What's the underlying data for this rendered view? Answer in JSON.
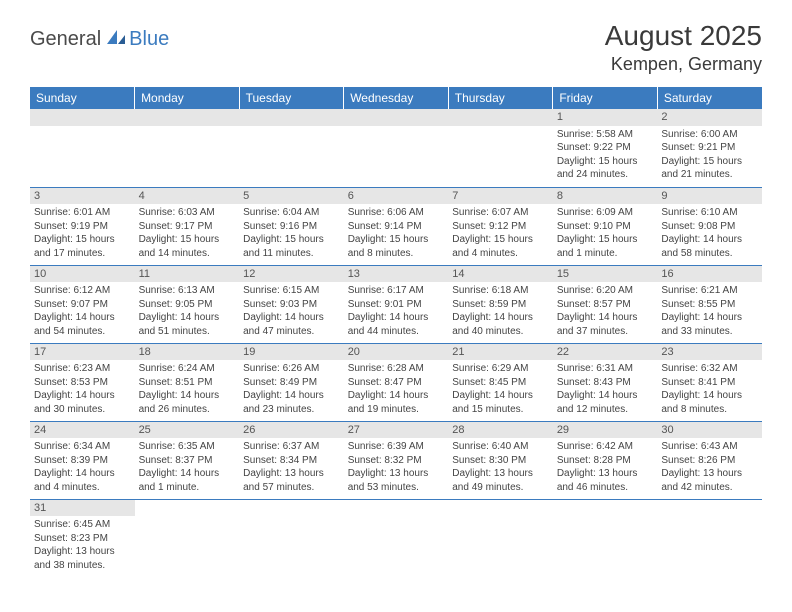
{
  "logo": {
    "part1": "General",
    "part2": "Blue"
  },
  "title": "August 2025",
  "location": "Kempen, Germany",
  "colors": {
    "header_bg": "#3b7bbf",
    "header_text": "#ffffff",
    "daynum_bg": "#e6e6e6",
    "row_border": "#3b7bbf",
    "text": "#444444"
  },
  "weekdays": [
    "Sunday",
    "Monday",
    "Tuesday",
    "Wednesday",
    "Thursday",
    "Friday",
    "Saturday"
  ],
  "weeks": [
    [
      null,
      null,
      null,
      null,
      null,
      {
        "n": "1",
        "sr": "Sunrise: 5:58 AM",
        "ss": "Sunset: 9:22 PM",
        "d1": "Daylight: 15 hours",
        "d2": "and 24 minutes."
      },
      {
        "n": "2",
        "sr": "Sunrise: 6:00 AM",
        "ss": "Sunset: 9:21 PM",
        "d1": "Daylight: 15 hours",
        "d2": "and 21 minutes."
      }
    ],
    [
      {
        "n": "3",
        "sr": "Sunrise: 6:01 AM",
        "ss": "Sunset: 9:19 PM",
        "d1": "Daylight: 15 hours",
        "d2": "and 17 minutes."
      },
      {
        "n": "4",
        "sr": "Sunrise: 6:03 AM",
        "ss": "Sunset: 9:17 PM",
        "d1": "Daylight: 15 hours",
        "d2": "and 14 minutes."
      },
      {
        "n": "5",
        "sr": "Sunrise: 6:04 AM",
        "ss": "Sunset: 9:16 PM",
        "d1": "Daylight: 15 hours",
        "d2": "and 11 minutes."
      },
      {
        "n": "6",
        "sr": "Sunrise: 6:06 AM",
        "ss": "Sunset: 9:14 PM",
        "d1": "Daylight: 15 hours",
        "d2": "and 8 minutes."
      },
      {
        "n": "7",
        "sr": "Sunrise: 6:07 AM",
        "ss": "Sunset: 9:12 PM",
        "d1": "Daylight: 15 hours",
        "d2": "and 4 minutes."
      },
      {
        "n": "8",
        "sr": "Sunrise: 6:09 AM",
        "ss": "Sunset: 9:10 PM",
        "d1": "Daylight: 15 hours",
        "d2": "and 1 minute."
      },
      {
        "n": "9",
        "sr": "Sunrise: 6:10 AM",
        "ss": "Sunset: 9:08 PM",
        "d1": "Daylight: 14 hours",
        "d2": "and 58 minutes."
      }
    ],
    [
      {
        "n": "10",
        "sr": "Sunrise: 6:12 AM",
        "ss": "Sunset: 9:07 PM",
        "d1": "Daylight: 14 hours",
        "d2": "and 54 minutes."
      },
      {
        "n": "11",
        "sr": "Sunrise: 6:13 AM",
        "ss": "Sunset: 9:05 PM",
        "d1": "Daylight: 14 hours",
        "d2": "and 51 minutes."
      },
      {
        "n": "12",
        "sr": "Sunrise: 6:15 AM",
        "ss": "Sunset: 9:03 PM",
        "d1": "Daylight: 14 hours",
        "d2": "and 47 minutes."
      },
      {
        "n": "13",
        "sr": "Sunrise: 6:17 AM",
        "ss": "Sunset: 9:01 PM",
        "d1": "Daylight: 14 hours",
        "d2": "and 44 minutes."
      },
      {
        "n": "14",
        "sr": "Sunrise: 6:18 AM",
        "ss": "Sunset: 8:59 PM",
        "d1": "Daylight: 14 hours",
        "d2": "and 40 minutes."
      },
      {
        "n": "15",
        "sr": "Sunrise: 6:20 AM",
        "ss": "Sunset: 8:57 PM",
        "d1": "Daylight: 14 hours",
        "d2": "and 37 minutes."
      },
      {
        "n": "16",
        "sr": "Sunrise: 6:21 AM",
        "ss": "Sunset: 8:55 PM",
        "d1": "Daylight: 14 hours",
        "d2": "and 33 minutes."
      }
    ],
    [
      {
        "n": "17",
        "sr": "Sunrise: 6:23 AM",
        "ss": "Sunset: 8:53 PM",
        "d1": "Daylight: 14 hours",
        "d2": "and 30 minutes."
      },
      {
        "n": "18",
        "sr": "Sunrise: 6:24 AM",
        "ss": "Sunset: 8:51 PM",
        "d1": "Daylight: 14 hours",
        "d2": "and 26 minutes."
      },
      {
        "n": "19",
        "sr": "Sunrise: 6:26 AM",
        "ss": "Sunset: 8:49 PM",
        "d1": "Daylight: 14 hours",
        "d2": "and 23 minutes."
      },
      {
        "n": "20",
        "sr": "Sunrise: 6:28 AM",
        "ss": "Sunset: 8:47 PM",
        "d1": "Daylight: 14 hours",
        "d2": "and 19 minutes."
      },
      {
        "n": "21",
        "sr": "Sunrise: 6:29 AM",
        "ss": "Sunset: 8:45 PM",
        "d1": "Daylight: 14 hours",
        "d2": "and 15 minutes."
      },
      {
        "n": "22",
        "sr": "Sunrise: 6:31 AM",
        "ss": "Sunset: 8:43 PM",
        "d1": "Daylight: 14 hours",
        "d2": "and 12 minutes."
      },
      {
        "n": "23",
        "sr": "Sunrise: 6:32 AM",
        "ss": "Sunset: 8:41 PM",
        "d1": "Daylight: 14 hours",
        "d2": "and 8 minutes."
      }
    ],
    [
      {
        "n": "24",
        "sr": "Sunrise: 6:34 AM",
        "ss": "Sunset: 8:39 PM",
        "d1": "Daylight: 14 hours",
        "d2": "and 4 minutes."
      },
      {
        "n": "25",
        "sr": "Sunrise: 6:35 AM",
        "ss": "Sunset: 8:37 PM",
        "d1": "Daylight: 14 hours",
        "d2": "and 1 minute."
      },
      {
        "n": "26",
        "sr": "Sunrise: 6:37 AM",
        "ss": "Sunset: 8:34 PM",
        "d1": "Daylight: 13 hours",
        "d2": "and 57 minutes."
      },
      {
        "n": "27",
        "sr": "Sunrise: 6:39 AM",
        "ss": "Sunset: 8:32 PM",
        "d1": "Daylight: 13 hours",
        "d2": "and 53 minutes."
      },
      {
        "n": "28",
        "sr": "Sunrise: 6:40 AM",
        "ss": "Sunset: 8:30 PM",
        "d1": "Daylight: 13 hours",
        "d2": "and 49 minutes."
      },
      {
        "n": "29",
        "sr": "Sunrise: 6:42 AM",
        "ss": "Sunset: 8:28 PM",
        "d1": "Daylight: 13 hours",
        "d2": "and 46 minutes."
      },
      {
        "n": "30",
        "sr": "Sunrise: 6:43 AM",
        "ss": "Sunset: 8:26 PM",
        "d1": "Daylight: 13 hours",
        "d2": "and 42 minutes."
      }
    ],
    [
      {
        "n": "31",
        "sr": "Sunrise: 6:45 AM",
        "ss": "Sunset: 8:23 PM",
        "d1": "Daylight: 13 hours",
        "d2": "and 38 minutes."
      },
      null,
      null,
      null,
      null,
      null,
      null
    ]
  ]
}
